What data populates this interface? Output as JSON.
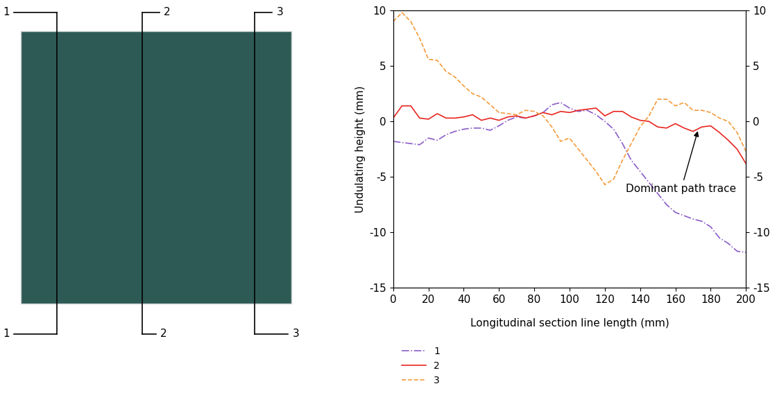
{
  "surface_image": {
    "sections": [
      "1",
      "2",
      "3"
    ]
  },
  "chart_data": {
    "type": "line",
    "x_label": "Longitudinal section line length (mm)",
    "y_label": "Undulating height (mm)",
    "x": [
      0,
      5,
      10,
      15,
      20,
      25,
      30,
      35,
      40,
      45,
      50,
      55,
      60,
      65,
      70,
      75,
      80,
      85,
      90,
      95,
      100,
      105,
      110,
      115,
      120,
      125,
      130,
      135,
      140,
      145,
      150,
      155,
      160,
      165,
      170,
      175,
      180,
      185,
      190,
      195,
      200
    ],
    "series": [
      {
        "name": "1",
        "color": "#8a5cc8",
        "line_style": "dashdot",
        "values": [
          -1.8,
          -1.9,
          -2.0,
          -2.1,
          -1.5,
          -1.7,
          -1.2,
          -0.9,
          -0.7,
          -0.6,
          -0.6,
          -0.8,
          -0.4,
          0.1,
          0.4,
          0.3,
          0.5,
          0.8,
          1.5,
          1.7,
          1.2,
          0.9,
          1.0,
          0.6,
          0.0,
          -0.7,
          -2.0,
          -3.5,
          -4.5,
          -5.5,
          -6.5,
          -7.5,
          -8.2,
          -8.5,
          -8.8,
          -9.0,
          -9.5,
          -10.5,
          -11.0,
          -11.7,
          -11.8
        ]
      },
      {
        "name": "2",
        "color": "#e8251f",
        "line_style": "solid",
        "values": [
          0.3,
          1.4,
          1.4,
          0.3,
          0.2,
          0.7,
          0.3,
          0.3,
          0.4,
          0.6,
          0.1,
          0.3,
          0.1,
          0.4,
          0.5,
          0.3,
          0.5,
          0.8,
          0.6,
          0.9,
          0.8,
          1.0,
          1.1,
          1.2,
          0.5,
          0.9,
          0.9,
          0.4,
          0.1,
          0.0,
          -0.5,
          -0.6,
          -0.2,
          -0.6,
          -0.9,
          -0.5,
          -0.4,
          -1.0,
          -1.7,
          -2.5,
          -3.8
        ]
      },
      {
        "name": "3",
        "color": "#f59b3a",
        "line_style": "dashed",
        "values": [
          9.0,
          9.8,
          9.0,
          7.5,
          5.6,
          5.5,
          4.5,
          4.0,
          3.2,
          2.5,
          2.2,
          1.5,
          0.8,
          0.7,
          0.6,
          1.0,
          0.9,
          0.5,
          -0.5,
          -1.8,
          -1.5,
          -2.5,
          -3.5,
          -4.5,
          -5.7,
          -5.2,
          -3.5,
          -2.0,
          -0.5,
          0.5,
          2.0,
          2.0,
          1.4,
          1.7,
          1.0,
          1.0,
          0.8,
          0.3,
          0.0,
          -1.0,
          -2.7
        ]
      }
    ],
    "annotations": [
      {
        "text": "Dominant path trace",
        "x": 173,
        "y": -0.7
      }
    ],
    "xlim": [
      0,
      200
    ],
    "xticks": [
      0,
      20,
      40,
      60,
      80,
      100,
      120,
      140,
      160,
      180,
      200
    ],
    "ylim": [
      -15,
      10
    ],
    "yticks": [
      -15,
      -10,
      -5,
      0,
      5,
      10
    ],
    "y2lim": [
      -15,
      10
    ],
    "y2ticks": [
      -15,
      -10,
      -5,
      0,
      5,
      10
    ],
    "grid": false,
    "legend": "lower left"
  }
}
